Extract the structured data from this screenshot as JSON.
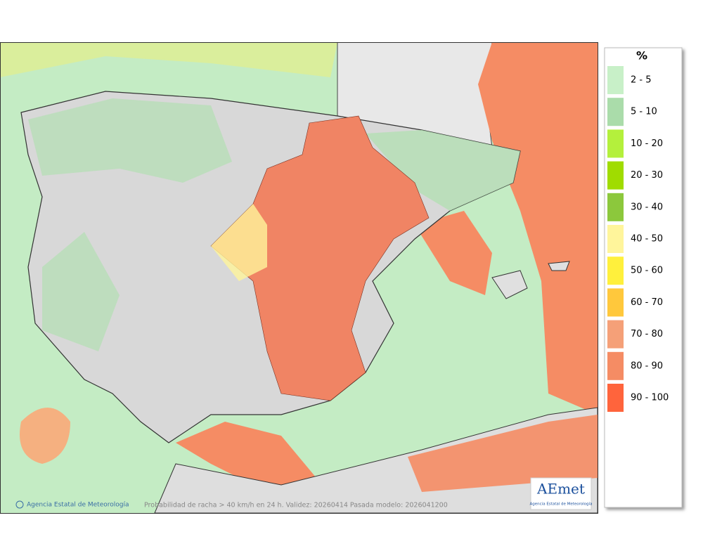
{
  "legend": {
    "title": "%",
    "items": [
      {
        "label": "2 - 5",
        "color": "#c8f0c8"
      },
      {
        "label": "5 - 10",
        "color": "#aadcaa"
      },
      {
        "label": "10 - 20",
        "color": "#b4f03c"
      },
      {
        "label": "20 - 30",
        "color": "#a0dc00"
      },
      {
        "label": "30 - 40",
        "color": "#8cc83c"
      },
      {
        "label": "40 - 50",
        "color": "#fff59b"
      },
      {
        "label": "50 - 60",
        "color": "#fff03c"
      },
      {
        "label": "60 - 70",
        "color": "#ffc83c"
      },
      {
        "label": "70 - 80",
        "color": "#f5a078"
      },
      {
        "label": "80 - 90",
        "color": "#f58c64"
      },
      {
        "label": "90 - 100",
        "color": "#ff643c"
      }
    ]
  },
  "footer": {
    "credit": "Agencia Estatal de Meteorología",
    "caption": "Probabilidad de racha > 40 km/h en 24 h. Validez: 20260414 Pasada modelo: 2026041200"
  },
  "logo": {
    "name": "AEmet",
    "subtitle": "Agencia Estatal de Meteorología"
  }
}
